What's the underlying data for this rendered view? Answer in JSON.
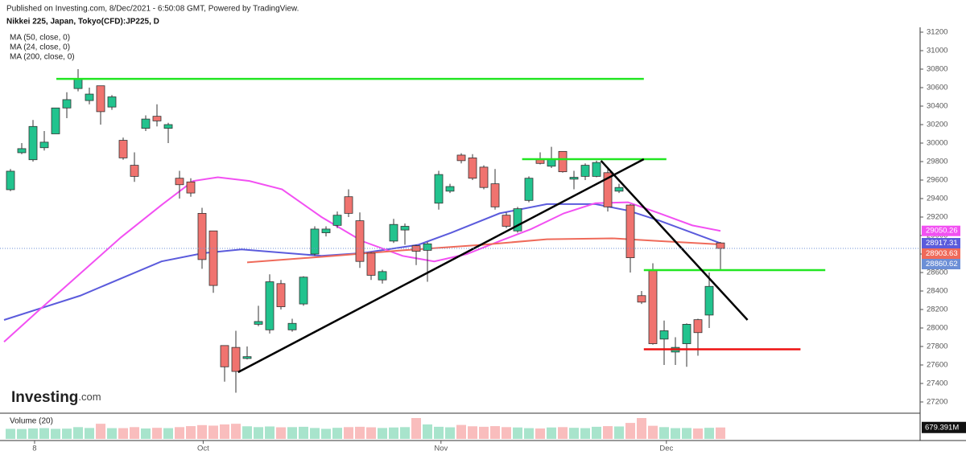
{
  "chart_data": {
    "type": "candlestick",
    "published": "Published on Investing.com, 8/Dec/2021 - 6:50:08 GMT, Powered by TradingView.",
    "title": "Nikkei 225, Japan, Tokyo(CFD):JP225, D",
    "logo": {
      "main": "Investing",
      "suffix": ".com"
    },
    "up_color": "#22c38e",
    "down_color": "#f0736f",
    "ylim": [
      27100,
      31300
    ],
    "yticks": [
      27200,
      27400,
      27600,
      27800,
      28000,
      28200,
      28400,
      28600,
      28800,
      29000,
      29200,
      29400,
      29600,
      29800,
      30000,
      30200,
      30400,
      30600,
      30800,
      31000,
      31200
    ],
    "xticks": [
      {
        "value": 2.14,
        "label": "8"
      },
      {
        "value": 17.1,
        "label": "Oct"
      },
      {
        "value": 38.2,
        "label": "Nov"
      },
      {
        "value": 58.2,
        "label": "Dec"
      }
    ],
    "candles": [
      [
        29496,
        29720,
        29480,
        29696
      ],
      [
        29896,
        30000,
        29880,
        29940
      ],
      [
        29820,
        30250,
        29800,
        30180
      ],
      [
        29950,
        30130,
        29920,
        30010
      ],
      [
        30100,
        30380,
        30100,
        30380
      ],
      [
        30380,
        30550,
        30270,
        30470
      ],
      [
        30590,
        30800,
        30560,
        30700
      ],
      [
        30460,
        30600,
        30420,
        30530
      ],
      [
        30620,
        30620,
        30200,
        30340
      ],
      [
        30390,
        30520,
        30360,
        30500
      ],
      [
        30030,
        30060,
        29820,
        29840
      ],
      [
        29760,
        29900,
        29580,
        29640
      ],
      [
        30160,
        30300,
        30130,
        30260
      ],
      [
        30290,
        30420,
        30180,
        30240
      ],
      [
        30160,
        30220,
        30000,
        30200
      ],
      [
        29620,
        29700,
        29400,
        29550
      ],
      [
        29580,
        29620,
        29420,
        29460
      ],
      [
        29240,
        29300,
        28640,
        28740
      ],
      [
        29050,
        29050,
        28380,
        28460
      ],
      [
        27810,
        27810,
        27420,
        27580
      ],
      [
        27790,
        27970,
        27300,
        27530
      ],
      [
        27670,
        27800,
        27660,
        27690
      ],
      [
        28040,
        28240,
        28020,
        28070
      ],
      [
        27980,
        28580,
        27940,
        28500
      ],
      [
        28480,
        28520,
        28200,
        28230
      ],
      [
        27980,
        28100,
        27960,
        28050
      ],
      [
        28260,
        28560,
        28240,
        28550
      ],
      [
        28800,
        29100,
        28780,
        29070
      ],
      [
        29030,
        29100,
        28990,
        29070
      ],
      [
        29110,
        29260,
        29080,
        29220
      ],
      [
        29420,
        29500,
        29200,
        29240
      ],
      [
        29160,
        29250,
        28650,
        28720
      ],
      [
        28810,
        28820,
        28520,
        28570
      ],
      [
        28520,
        28630,
        28480,
        28610
      ],
      [
        28940,
        29180,
        28920,
        29120
      ],
      [
        29060,
        29130,
        28900,
        29100
      ],
      [
        28890,
        28900,
        28680,
        28830
      ],
      [
        28840,
        28930,
        28500,
        28910
      ],
      [
        29350,
        29700,
        29280,
        29660
      ],
      [
        29480,
        29560,
        29460,
        29530
      ],
      [
        29870,
        29890,
        29780,
        29810
      ],
      [
        29840,
        29880,
        29600,
        29620
      ],
      [
        29740,
        29760,
        29500,
        29520
      ],
      [
        29560,
        29720,
        29280,
        29310
      ],
      [
        29220,
        29250,
        29080,
        29100
      ],
      [
        29050,
        29310,
        29030,
        29290
      ],
      [
        29380,
        29640,
        29360,
        29620
      ],
      [
        29820,
        29900,
        29770,
        29780
      ],
      [
        29750,
        29960,
        29730,
        29830
      ],
      [
        29910,
        29910,
        29680,
        29690
      ],
      [
        29610,
        29700,
        29500,
        29630
      ],
      [
        29640,
        29780,
        29600,
        29760
      ],
      [
        29640,
        29810,
        29630,
        29790
      ],
      [
        29680,
        29720,
        29260,
        29310
      ],
      [
        29480,
        29560,
        29460,
        29520
      ],
      [
        29330,
        29340,
        28600,
        28760
      ],
      [
        28350,
        28400,
        28260,
        28280
      ],
      [
        28620,
        28700,
        27820,
        27830
      ],
      [
        27880,
        28080,
        27600,
        27970
      ],
      [
        27740,
        27900,
        27600,
        27790
      ],
      [
        27830,
        28050,
        27580,
        28040
      ],
      [
        28090,
        28100,
        27700,
        27950
      ],
      [
        28140,
        28600,
        28000,
        28450
      ],
      [
        28920,
        28930,
        28620,
        28860.62
      ]
    ],
    "moving_averages": [
      {
        "name": "MA (50, close, 0)",
        "color": "#5b5bdc",
        "x": [
          -0.57,
          6.2,
          13.4,
          17.1,
          20.5,
          27.6,
          31.2,
          36.2,
          39.1,
          43.4,
          47.6,
          51.9,
          54.8,
          57.6,
          60.5,
          63
        ],
        "values": [
          28087,
          28350,
          28720,
          28810,
          28850,
          28780,
          28810,
          28900,
          29030,
          29240,
          29340,
          29340,
          29270,
          29160,
          29030,
          28917.31
        ]
      },
      {
        "name": "MA (24, close, 0)",
        "color": "#f250f2",
        "x": [
          -0.57,
          2.6,
          6.2,
          9.8,
          13.4,
          16.2,
          18.4,
          21.2,
          24.1,
          27.6,
          31.2,
          34.8,
          37.6,
          40.5,
          43.4,
          46.2,
          49.1,
          51.9,
          54.8,
          57.6,
          60.5,
          63
        ],
        "values": [
          27850,
          28200,
          28590,
          28980,
          29330,
          29590,
          29630,
          29590,
          29500,
          29200,
          28940,
          28780,
          28720,
          28800,
          28940,
          29070,
          29240,
          29350,
          29360,
          29240,
          29110,
          29050.26
        ]
      },
      {
        "name": "MA (200, close, 0)",
        "color": "#ef6a5a",
        "x": [
          21,
          27.6,
          34.8,
          41.9,
          47.6,
          53.4,
          57.6,
          63
        ],
        "values": [
          28710,
          28770,
          28840,
          28900,
          28960,
          28970,
          28940,
          28903.63
        ]
      }
    ],
    "last_price_color": "#6c8fd6",
    "drawings": [
      {
        "color": "#22e622",
        "x": [
          4.07,
          56.2
        ],
        "values": [
          30695,
          30695
        ]
      },
      {
        "color": "#22e622",
        "x": [
          45.4,
          58.2
        ],
        "values": [
          29826,
          29826
        ]
      },
      {
        "color": "#22e622",
        "x": [
          56.2,
          72.3
        ],
        "values": [
          28626,
          28626
        ]
      },
      {
        "color": "#ee1111",
        "x": [
          56.2,
          70.1
        ],
        "values": [
          27770,
          27770
        ]
      },
      {
        "color": "#000000",
        "x": [
          20.2,
          56.2
        ],
        "values": [
          27522,
          29826
        ]
      },
      {
        "color": "#000000",
        "x": [
          52.4,
          65.4
        ],
        "values": [
          29809,
          28087
        ]
      }
    ],
    "volume": {
      "name": "Volume (20)",
      "values": [
        600,
        590,
        620,
        640,
        600,
        610,
        700,
        650,
        900,
        640,
        640,
        700,
        620,
        660,
        640,
        700,
        760,
        820,
        790,
        860,
        900,
        750,
        700,
        740,
        690,
        700,
        720,
        650,
        600,
        660,
        700,
        720,
        690,
        650,
        680,
        700,
        1240,
        860,
        720,
        690,
        830,
        750,
        720,
        760,
        700,
        680,
        640,
        620,
        680,
        700,
        660,
        640,
        720,
        760,
        740,
        950,
        1240,
        780,
        700,
        640,
        650,
        620,
        660,
        679.391
      ],
      "last_label": {
        "value": 679.391,
        "label": "679.391M"
      }
    }
  }
}
